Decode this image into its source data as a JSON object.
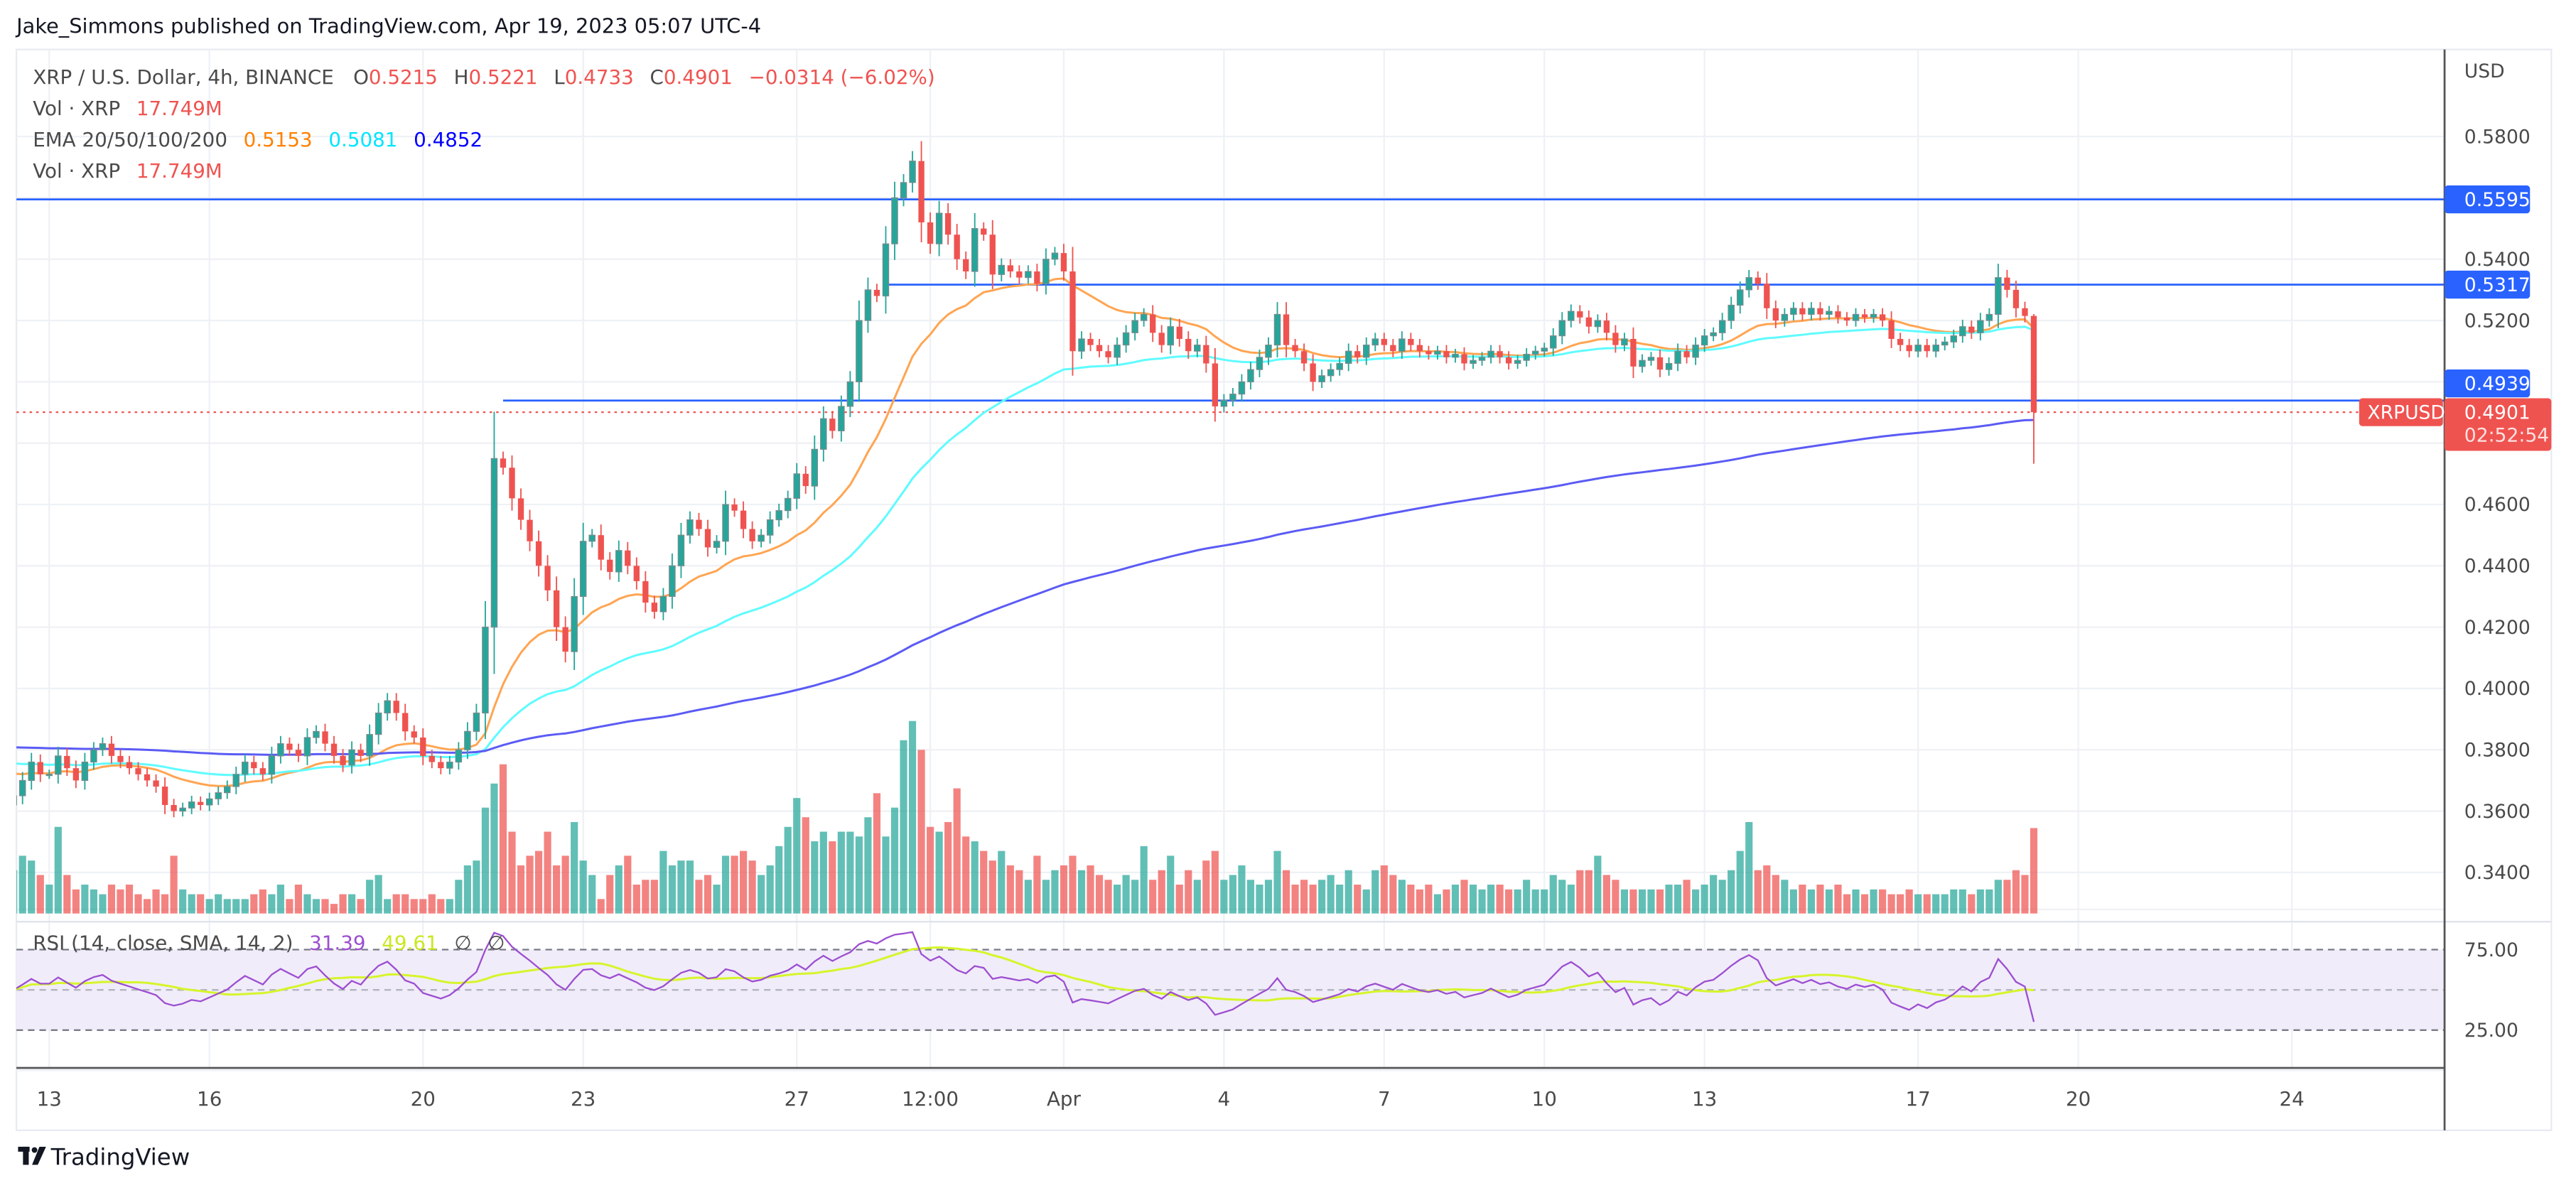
{
  "header": {
    "published": "Jake_Simmons published on TradingView.com, Apr 19, 2023 05:07 UTC-4"
  },
  "legend": {
    "symbol": "XRP / U.S. Dollar, 4h, BINANCE",
    "o_label": "O",
    "o": "0.5215",
    "h_label": "H",
    "h": "0.5221",
    "l_label": "L",
    "l": "0.4733",
    "c_label": "C",
    "c": "0.4901",
    "change": "−0.0314 (−6.02%)",
    "vol_label": "Vol · XRP",
    "vol": "17.749M",
    "ema_label": "EMA 20/50/100/200",
    "ema20": "0.5153",
    "ema50": "0.5081",
    "ema100": "0.4852",
    "vol2_label": "Vol · XRP",
    "vol2": "17.749M"
  },
  "rsi_legend": {
    "label": "RSI (14, close, SMA, 14, 2)",
    "rsi": "31.39",
    "sma": "49.61",
    "na1": "∅",
    "na2": "∅"
  },
  "price_axis": {
    "currency": "USD",
    "ticks": [
      "0.5800",
      "0.5400",
      "0.5200",
      "0.4600",
      "0.4400",
      "0.4200",
      "0.4000",
      "0.3800",
      "0.3600",
      "0.3400"
    ],
    "level_labels": [
      "0.5595",
      "0.5317",
      "0.4939"
    ],
    "current_price": "0.4901",
    "countdown": "02:52:54",
    "symbol_tag": "XRPUSD"
  },
  "rsi_axis": {
    "ticks": [
      "75.00",
      "25.00"
    ]
  },
  "time_axis": [
    {
      "label": "13",
      "time": "2023-03-13T00:00"
    },
    {
      "label": "16",
      "time": "2023-03-16T00:00"
    },
    {
      "label": "20",
      "time": "2023-03-20T00:00"
    },
    {
      "label": "23",
      "time": "2023-03-23T00:00"
    },
    {
      "label": "27",
      "time": "2023-03-27T00:00"
    },
    {
      "label": "12:00",
      "time": "2023-03-29T12:00"
    },
    {
      "label": "Apr",
      "time": "2023-04-01T00:00"
    },
    {
      "label": "4",
      "time": "2023-04-04T00:00"
    },
    {
      "label": "7",
      "time": "2023-04-07T00:00"
    },
    {
      "label": "10",
      "time": "2023-04-10T00:00"
    },
    {
      "label": "13",
      "time": "2023-04-13T00:00"
    },
    {
      "label": "17",
      "time": "2023-04-17T00:00"
    },
    {
      "label": "20",
      "time": "2023-04-20T00:00"
    },
    {
      "label": "24",
      "time": "2023-04-24T00:00"
    }
  ],
  "footer": {
    "logo_text": "TradingView"
  },
  "colors": {
    "up": "#26a69a",
    "down": "#ef5350",
    "ema20": "#ffa552",
    "ema50": "#5ffbff",
    "ema100": "#5b5bf5",
    "levels": "#2962ff",
    "rsi": "#9c4fd1",
    "rsi_sma": "#d6f52b",
    "legend_ema20": "#ff8000",
    "legend_ema50": "#00ffff",
    "legend_ema100": "#0000ff"
  },
  "chart_data": {
    "type": "candlestick",
    "interval": "4h",
    "start": "2023-03-12T08:00",
    "price_range": [
      0.33,
      0.59
    ],
    "horizontal_levels": [
      {
        "price": 0.5595,
        "from": "2023-03-12T08:00"
      },
      {
        "price": 0.5317,
        "from": "2023-03-28T16:00"
      },
      {
        "price": 0.4939,
        "from": "2023-03-21T12:00"
      }
    ],
    "last_bar": {
      "open": 0.5215,
      "high": 0.5221,
      "low": 0.4733,
      "close": 0.4901,
      "volume_m": 17.749
    },
    "closes": [
      0.365,
      0.37,
      0.376,
      0.372,
      0.372,
      0.378,
      0.374,
      0.37,
      0.376,
      0.38,
      0.382,
      0.378,
      0.376,
      0.374,
      0.372,
      0.37,
      0.368,
      0.362,
      0.36,
      0.361,
      0.363,
      0.362,
      0.364,
      0.366,
      0.368,
      0.372,
      0.376,
      0.374,
      0.372,
      0.378,
      0.382,
      0.38,
      0.378,
      0.384,
      0.386,
      0.382,
      0.378,
      0.375,
      0.38,
      0.378,
      0.385,
      0.392,
      0.396,
      0.392,
      0.386,
      0.384,
      0.378,
      0.376,
      0.374,
      0.376,
      0.38,
      0.386,
      0.392,
      0.42,
      0.475,
      0.472,
      0.462,
      0.455,
      0.448,
      0.44,
      0.432,
      0.42,
      0.412,
      0.43,
      0.448,
      0.45,
      0.442,
      0.438,
      0.445,
      0.44,
      0.435,
      0.428,
      0.425,
      0.43,
      0.44,
      0.45,
      0.455,
      0.452,
      0.446,
      0.448,
      0.46,
      0.458,
      0.452,
      0.448,
      0.45,
      0.455,
      0.458,
      0.462,
      0.47,
      0.466,
      0.478,
      0.488,
      0.484,
      0.492,
      0.5,
      0.52,
      0.53,
      0.528,
      0.545,
      0.56,
      0.565,
      0.572,
      0.552,
      0.545,
      0.555,
      0.548,
      0.54,
      0.536,
      0.55,
      0.548,
      0.535,
      0.538,
      0.536,
      0.534,
      0.536,
      0.532,
      0.54,
      0.542,
      0.536,
      0.51,
      0.514,
      0.512,
      0.51,
      0.508,
      0.512,
      0.516,
      0.52,
      0.522,
      0.516,
      0.512,
      0.518,
      0.514,
      0.51,
      0.512,
      0.506,
      0.492,
      0.494,
      0.496,
      0.5,
      0.504,
      0.508,
      0.512,
      0.522,
      0.512,
      0.51,
      0.506,
      0.5,
      0.502,
      0.504,
      0.506,
      0.51,
      0.508,
      0.512,
      0.514,
      0.512,
      0.51,
      0.514,
      0.512,
      0.51,
      0.509,
      0.51,
      0.508,
      0.509,
      0.506,
      0.507,
      0.508,
      0.51,
      0.508,
      0.506,
      0.507,
      0.509,
      0.51,
      0.511,
      0.515,
      0.52,
      0.523,
      0.521,
      0.518,
      0.52,
      0.516,
      0.512,
      0.514,
      0.505,
      0.507,
      0.508,
      0.504,
      0.506,
      0.51,
      0.508,
      0.512,
      0.515,
      0.516,
      0.52,
      0.525,
      0.53,
      0.534,
      0.532,
      0.524,
      0.52,
      0.522,
      0.524,
      0.522,
      0.524,
      0.522,
      0.523,
      0.521,
      0.52,
      0.522,
      0.521,
      0.522,
      0.52,
      0.514,
      0.512,
      0.51,
      0.512,
      0.51,
      0.512,
      0.513,
      0.515,
      0.518,
      0.516,
      0.52,
      0.522,
      0.534,
      0.53,
      0.524,
      0.5215,
      0.4901
    ],
    "volumes_m": [
      9,
      12,
      11,
      8,
      6,
      18,
      8,
      5,
      6,
      5,
      4,
      6,
      5,
      6,
      4,
      3,
      5,
      4,
      12,
      5,
      4,
      4,
      3,
      4,
      3,
      3,
      3,
      4,
      5,
      4,
      6,
      3,
      6,
      4,
      3,
      3,
      2,
      4,
      4,
      3,
      7,
      8,
      3,
      4,
      4,
      3,
      3,
      4,
      3,
      3,
      7,
      10,
      11,
      22,
      27,
      31,
      17,
      10,
      12,
      13,
      17,
      10,
      12,
      19,
      11,
      8,
      3,
      8,
      10,
      12,
      6,
      7,
      7,
      13,
      10,
      11,
      11,
      7,
      8,
      6,
      12,
      12,
      13,
      11,
      8,
      10,
      14,
      18,
      24,
      20,
      15,
      17,
      15,
      17,
      17,
      16,
      20,
      25,
      16,
      22,
      36,
      40,
      34,
      18,
      17,
      19,
      26,
      16,
      15,
      13,
      11,
      13,
      10,
      9,
      7,
      12,
      7,
      9,
      10,
      12,
      9,
      10,
      8,
      7,
      6,
      8,
      7,
      14,
      7,
      9,
      12,
      6,
      9,
      7,
      11,
      13,
      7,
      8,
      10,
      7,
      6,
      7,
      13,
      9,
      6,
      7,
      6,
      7,
      8,
      6,
      9,
      6,
      5,
      9,
      10,
      8,
      7,
      6,
      5,
      6,
      4,
      5,
      6,
      7,
      6,
      5,
      6,
      6,
      5,
      5,
      7,
      5,
      5,
      8,
      7,
      6,
      9,
      9,
      12,
      8,
      7,
      5,
      5,
      5,
      5,
      5,
      6,
      6,
      7,
      5,
      6,
      8,
      7,
      9,
      13,
      19,
      9,
      10,
      8,
      7,
      5,
      6,
      5,
      6,
      5,
      6,
      4,
      5,
      4,
      5,
      5,
      4,
      4,
      5,
      4,
      4,
      4,
      4,
      5,
      5,
      4,
      5,
      5,
      7,
      7,
      9,
      8,
      17.749
    ],
    "ema_periods": [
      20,
      50,
      100,
      200
    ],
    "rsi": {
      "period": 14,
      "sma_period": 14,
      "upper": 75,
      "middle": 50,
      "lower": 25
    }
  }
}
